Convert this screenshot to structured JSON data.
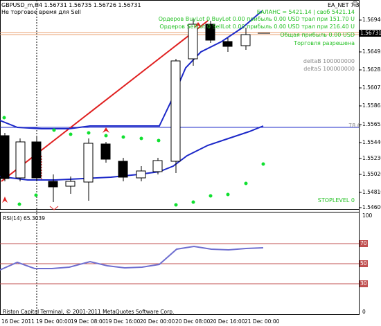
{
  "header": {
    "symbol_line": "GBPUSD_m,H4  1.56731 1.56735 1.56726 1.56731",
    "warning_line": "Не торговое время для Sell",
    "ea_label": "EA_NET 7.3",
    "smile_icon": "smiley-icon"
  },
  "info_panel": {
    "balance": "БАЛАНС = 5421.14 | своб 5421.14",
    "buy_orders": "Ордеров BuyLot 0 BuyLot 0.00 прибыль 0.00 USD трал при 151.70 U",
    "sell_orders": "Ордеров SellLot 0 SellLot 0.00 прибыль 0.00 USD трал при 216.40 U",
    "total_profit": "Общая прибыль 0.00 USD",
    "trading_allowed": "Торговля разрешена",
    "delta_b": "deltaB 100000000",
    "delta_s": "deltaS 100000000",
    "stoplevel": "STOPLEVEL 0",
    "level_78": "78.6"
  },
  "price_axis": {
    "labels": [
      "1.56940",
      "1.56731",
      "1.56495",
      "1.56285",
      "1.56075",
      "1.55865",
      "1.55655",
      "1.55440",
      "1.55230",
      "1.55020",
      "1.54810",
      "1.54600"
    ],
    "current_price": "1.56731",
    "current_price_color": "#000000"
  },
  "rsi": {
    "label": "RSI(14) 65.3039",
    "axis_labels": [
      "100",
      "70",
      "50",
      "30",
      "0"
    ],
    "level_labels": [
      "70",
      "50",
      "30"
    ],
    "level_color": "#c05050"
  },
  "time_axis": {
    "labels": [
      "16 Dec 2011",
      "19 Dec 00:00",
      "19 Dec 08:00",
      "19 Dec 16:00",
      "20 Dec 00:00",
      "20 Dec 08:00",
      "20 Dec 16:00",
      "21 Dec 00:00"
    ]
  },
  "footer": {
    "copyright": "Riston Capital Terminal, © 2001-2011 MetaQuotes Software Corp."
  },
  "colors": {
    "red_line": "#e02020",
    "blue_line": "#1c28c8",
    "rsi_line": "#6f6fd0",
    "dots": "#10e030",
    "info_text": "#22c022"
  }
}
